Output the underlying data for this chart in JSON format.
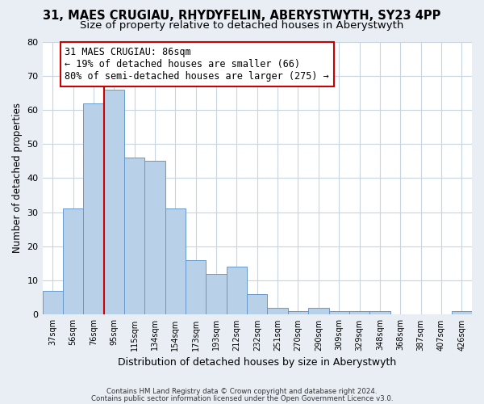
{
  "title": "31, MAES CRUGIAU, RHYDYFELIN, ABERYSTWYTH, SY23 4PP",
  "subtitle": "Size of property relative to detached houses in Aberystwyth",
  "xlabel": "Distribution of detached houses by size in Aberystwyth",
  "ylabel": "Number of detached properties",
  "bar_values": [
    7,
    31,
    62,
    66,
    46,
    45,
    31,
    16,
    12,
    14,
    6,
    2,
    1,
    2,
    1,
    1,
    1,
    0,
    0,
    0,
    1
  ],
  "bar_labels": [
    "37sqm",
    "56sqm",
    "76sqm",
    "95sqm",
    "115sqm",
    "134sqm",
    "154sqm",
    "173sqm",
    "193sqm",
    "212sqm",
    "232sqm",
    "251sqm",
    "270sqm",
    "290sqm",
    "309sqm",
    "329sqm",
    "348sqm",
    "368sqm",
    "387sqm",
    "407sqm",
    "426sqm"
  ],
  "bar_color": "#b8d0e8",
  "bar_edge_color": "#6699cc",
  "ylim": [
    0,
    80
  ],
  "yticks": [
    0,
    10,
    20,
    30,
    40,
    50,
    60,
    70,
    80
  ],
  "property_line_color": "#cc0000",
  "annotation_text": "31 MAES CRUGIAU: 86sqm\n← 19% of detached houses are smaller (66)\n80% of semi-detached houses are larger (275) →",
  "annotation_box_edge": "#cc0000",
  "footer_line1": "Contains HM Land Registry data © Crown copyright and database right 2024.",
  "footer_line2": "Contains public sector information licensed under the Open Government Licence v3.0.",
  "background_color": "#e8eef4",
  "plot_bg_color": "#ffffff",
  "grid_color": "#c8d4e0",
  "title_fontsize": 10.5,
  "subtitle_fontsize": 9.5,
  "tick_label_fontsize": 7,
  "axis_label_fontsize": 9,
  "ylabel_fontsize": 8.5
}
